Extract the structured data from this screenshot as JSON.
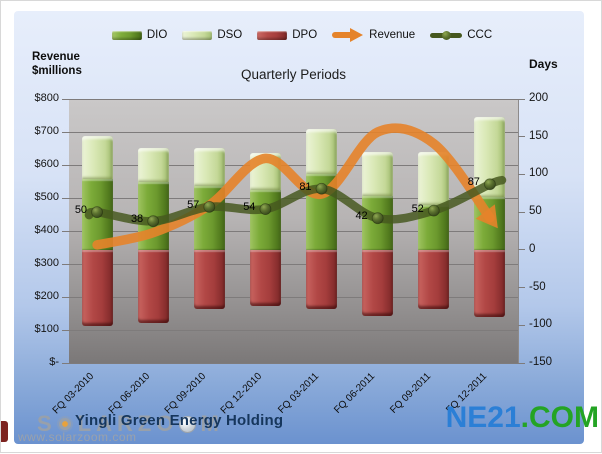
{
  "chart_data": {
    "type": "combo",
    "title": "Quarterly Periods",
    "categories": [
      "FQ 03-2010",
      "FQ 06-2010",
      "FQ 09-2010",
      "FQ 12-2010",
      "FQ 03-2011",
      "FQ 06-2011",
      "FQ 09-2011",
      "FQ 12-2011"
    ],
    "left_axis": {
      "title_line1": "Revenue",
      "title_line2": "$millions",
      "range": [
        0,
        800
      ],
      "ticks": [
        "$800",
        "$700",
        "$600",
        "$500",
        "$400",
        "$300",
        "$200",
        "$100",
        "$-"
      ]
    },
    "right_axis": {
      "title": "Days",
      "range": [
        -150,
        200
      ],
      "ticks": [
        "200",
        "150",
        "100",
        "50",
        "0",
        "-50",
        "-100",
        "-150"
      ]
    },
    "legend_position": "top-center",
    "grid": true,
    "series": [
      {
        "name": "DIO",
        "type": "bar",
        "axis": "days",
        "stack": "up",
        "values": [
          94,
          90,
          85,
          80,
          100,
          72,
          60,
          70
        ],
        "color": "#76a135"
      },
      {
        "name": "DSO",
        "type": "bar",
        "axis": "days",
        "stack": "up",
        "values": [
          57,
          45,
          50,
          48,
          60,
          58,
          70,
          106
        ],
        "color": "#d8e7b4"
      },
      {
        "name": "DPO",
        "type": "bar",
        "axis": "days",
        "stack": "down",
        "values": [
          101,
          97,
          78,
          74,
          79,
          88,
          78,
          89
        ],
        "color": "#b04543"
      },
      {
        "name": "Revenue",
        "type": "line-arrow",
        "axis": "dollars",
        "values": [
          358,
          395,
          478,
          620,
          512,
          700,
          665,
          440
        ],
        "color": "#e5832a"
      },
      {
        "name": "CCC",
        "type": "line-marker",
        "axis": "days",
        "show_labels": true,
        "values": [
          50,
          38,
          57,
          54,
          81,
          42,
          52,
          87
        ],
        "color": "#46581f"
      }
    ]
  },
  "footer": {
    "title": "Yingli Green Energy Holding",
    "title_color": "#16365c"
  },
  "watermark": {
    "name": "SOLARZOOM",
    "url": "www.solarzoom.com"
  },
  "brand": {
    "primary": "NE21",
    "suffix": ".COM",
    "primary_color": "#2b7fd6",
    "suffix_color": "#24a424"
  }
}
